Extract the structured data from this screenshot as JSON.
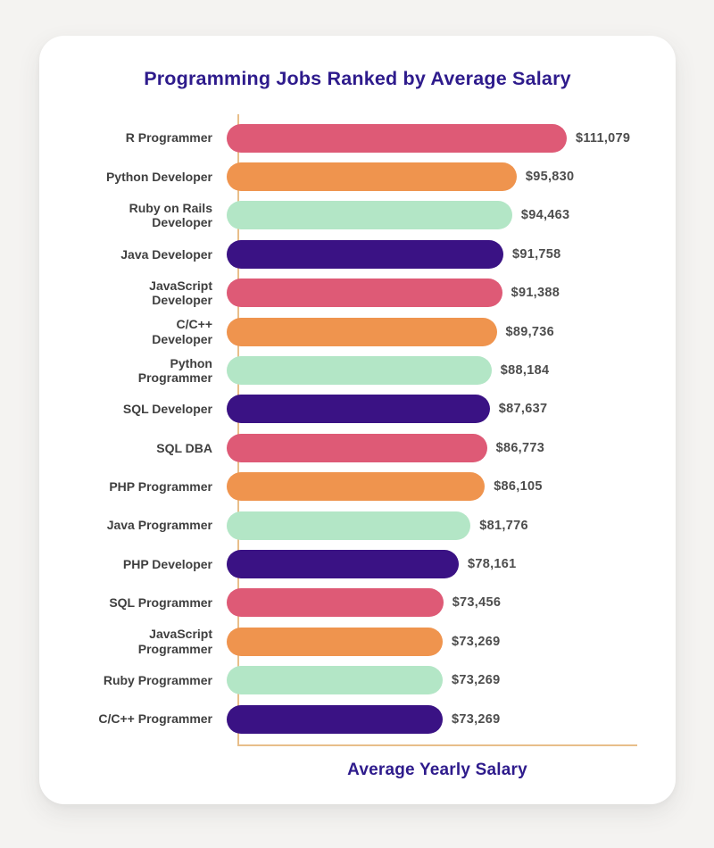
{
  "page": {
    "background_color": "#F4F3F1",
    "card_color": "#FFFFFF"
  },
  "chart_data": {
    "type": "bar",
    "orientation": "horizontal",
    "title": "Programming Jobs Ranked by Average Salary",
    "xlabel": "Average Yearly Salary",
    "ylabel": "",
    "legend": false,
    "grid": false,
    "value_prefix": "$",
    "value_range": [
      73269,
      111079
    ],
    "colors": {
      "title": "#2E1B8C",
      "axis": "#E8BE8A",
      "category_label": "#3F3F3F",
      "value_label": "#4D4D4D",
      "palette": [
        "#DE5A76",
        "#EF944E",
        "#B3E6C6",
        "#3A1284"
      ]
    },
    "rows": [
      {
        "category": "R Programmer",
        "label_lines": [
          "R Programmer"
        ],
        "value": 111079,
        "value_label": "$111,079",
        "color": "#DE5A76"
      },
      {
        "category": "Python Developer",
        "label_lines": [
          "Python Developer"
        ],
        "value": 95830,
        "value_label": "$95,830",
        "color": "#EF944E"
      },
      {
        "category": "Ruby on Rails Developer",
        "label_lines": [
          "Ruby on Rails",
          "Developer"
        ],
        "value": 94463,
        "value_label": "$94,463",
        "color": "#B3E6C6"
      },
      {
        "category": "Java Developer",
        "label_lines": [
          "Java Developer"
        ],
        "value": 91758,
        "value_label": "$91,758",
        "color": "#3A1284"
      },
      {
        "category": "JavaScript Developer",
        "label_lines": [
          "JavaScript",
          "Developer"
        ],
        "value": 91388,
        "value_label": "$91,388",
        "color": "#DE5A76"
      },
      {
        "category": "C/C++ Developer",
        "label_lines": [
          "C/C++",
          "Developer"
        ],
        "value": 89736,
        "value_label": "$89,736",
        "color": "#EF944E"
      },
      {
        "category": "Python Programmer",
        "label_lines": [
          "Python",
          "Programmer"
        ],
        "value": 88184,
        "value_label": "$88,184",
        "color": "#B3E6C6"
      },
      {
        "category": "SQL Developer",
        "label_lines": [
          "SQL Developer"
        ],
        "value": 87637,
        "value_label": "$87,637",
        "color": "#3A1284"
      },
      {
        "category": "SQL DBA",
        "label_lines": [
          "SQL DBA"
        ],
        "value": 86773,
        "value_label": "$86,773",
        "color": "#DE5A76"
      },
      {
        "category": "PHP Programmer",
        "label_lines": [
          "PHP Programmer"
        ],
        "value": 86105,
        "value_label": "$86,105",
        "color": "#EF944E"
      },
      {
        "category": "Java Programmer",
        "label_lines": [
          "Java Programmer"
        ],
        "value": 81776,
        "value_label": "$81,776",
        "color": "#B3E6C6"
      },
      {
        "category": "PHP Developer",
        "label_lines": [
          "PHP Developer"
        ],
        "value": 78161,
        "value_label": "$78,161",
        "color": "#3A1284"
      },
      {
        "category": "SQL Programmer",
        "label_lines": [
          "SQL Programmer"
        ],
        "value": 73456,
        "value_label": "$73,456",
        "color": "#DE5A76"
      },
      {
        "category": "JavaScript Programmer",
        "label_lines": [
          "JavaScript",
          "Programmer"
        ],
        "value": 73269,
        "value_label": "$73,269",
        "color": "#EF944E"
      },
      {
        "category": "Ruby Programmer",
        "label_lines": [
          "Ruby Programmer"
        ],
        "value": 73269,
        "value_label": "$73,269",
        "color": "#B3E6C6"
      },
      {
        "category": "C/C++ Programmer",
        "label_lines": [
          "C/C++ Programmer"
        ],
        "value": 73269,
        "value_label": "$73,269",
        "color": "#3A1284"
      }
    ]
  }
}
